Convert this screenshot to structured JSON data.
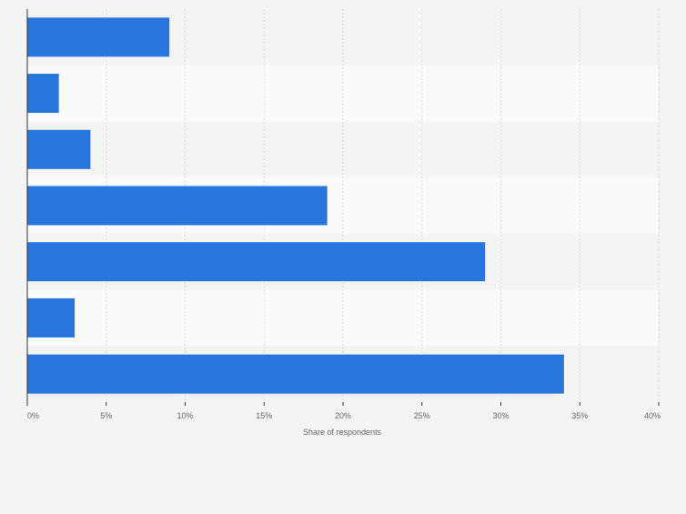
{
  "chart_data": {
    "type": "bar",
    "orientation": "horizontal",
    "categories": [
      "",
      "",
      "",
      "",
      "",
      "",
      ""
    ],
    "values": [
      9,
      2,
      4,
      19,
      29,
      3,
      34
    ],
    "unit": "%",
    "xlabel": "Share of respondents",
    "xlim": [
      0,
      40
    ],
    "xticks": [
      0,
      5,
      10,
      15,
      20,
      25,
      30,
      35,
      40
    ],
    "xtick_labels": [
      "0%",
      "5%",
      "10%",
      "15%",
      "20%",
      "25%",
      "30%",
      "35%",
      "40%"
    ],
    "grid": "vertical dashed",
    "legend": "none",
    "colors": {
      "bar": "#2876dd",
      "band_light": "#fafafa",
      "band_dark": "#f4f4f4",
      "grid": "#d9d9d9",
      "axis": "#333333",
      "tick_text": "#666666"
    }
  }
}
